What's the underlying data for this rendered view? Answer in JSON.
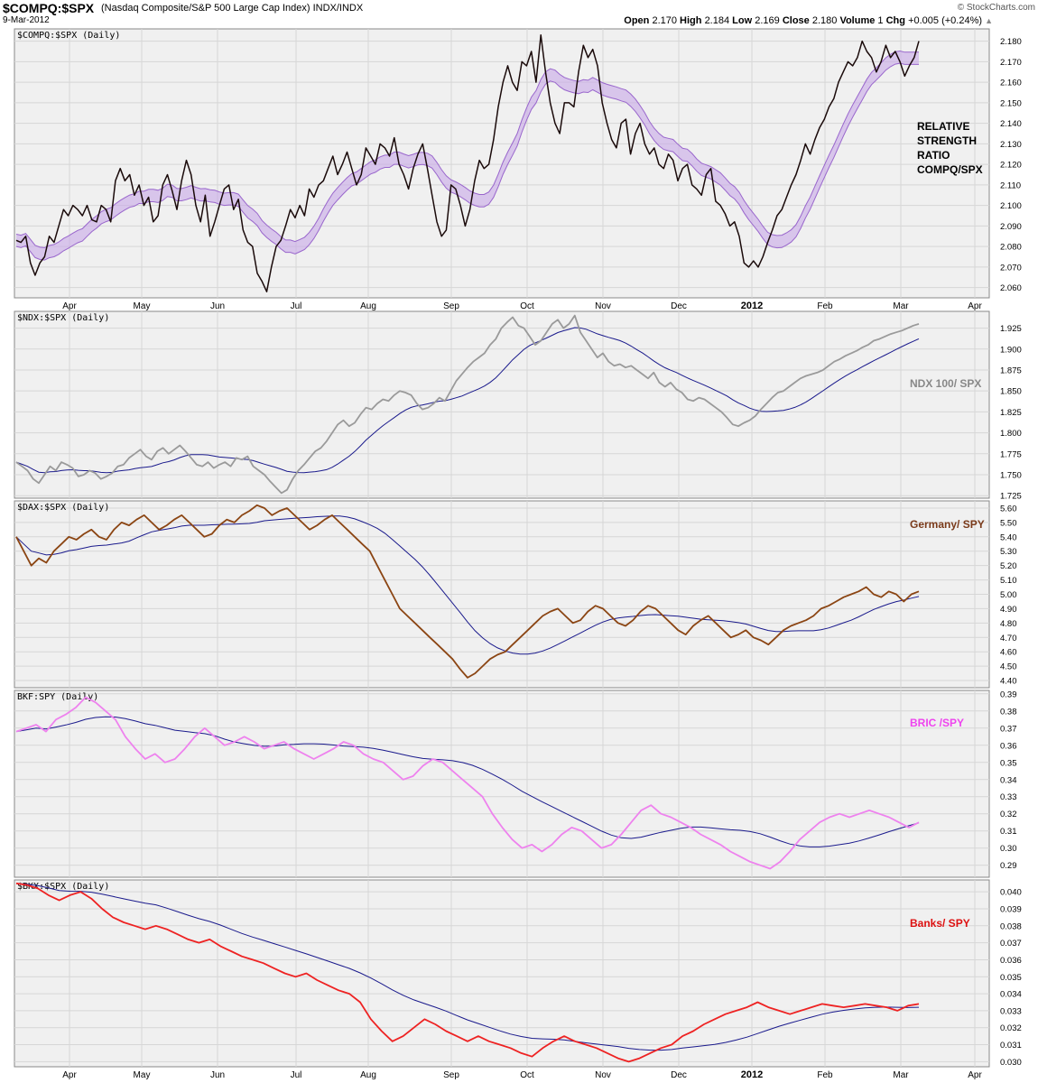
{
  "header": {
    "symbol": "$COMPQ:$SPX",
    "name": "(Nasdaq Composite/S&P 500 Large Cap Index)  INDX/INDX",
    "date": "9-Mar-2012",
    "brand": "© StockCharts.com",
    "quote": {
      "open_label": "Open",
      "open": "2.170",
      "high_label": "High",
      "high": "2.184",
      "low_label": "Low",
      "low": "2.169",
      "close_label": "Close",
      "close": "2.180",
      "volume_label": "Volume",
      "volume": "1",
      "chg_label": "Chg",
      "chg": "+0.005 (+0.24%)",
      "arrow": "▲"
    }
  },
  "colors": {
    "panel_bg": "#f0f0f0",
    "grid": "#d6d6d6",
    "ma": "#1a1a8c",
    "compq": "#1a0a0a",
    "band": "#9966cc"
  },
  "chart_data": [
    {
      "type": "line",
      "title": "$COMPQ:$SPX (Daily)",
      "annotation": [
        "RELATIVE",
        "STRENGTH",
        "RATIO",
        "COMPQ/SPX"
      ],
      "annotation_color": "#000000",
      "ylim": [
        2.055,
        2.186
      ],
      "yticks": [
        "2.060",
        "2.070",
        "2.080",
        "2.090",
        "2.100",
        "2.110",
        "2.120",
        "2.130",
        "2.140",
        "2.150",
        "2.160",
        "2.170",
        "2.180"
      ],
      "color": "#1a0a0a",
      "ma_color": "#9966cc",
      "ma_band": true,
      "months": [
        "Apr",
        "May",
        "Jun",
        "Jul",
        "Aug",
        "Sep",
        "Oct",
        "Nov",
        "Dec",
        "2012",
        "Feb",
        "Mar",
        "Apr"
      ],
      "series": [
        2.083,
        2.082,
        2.085,
        2.072,
        2.066,
        2.072,
        2.075,
        2.085,
        2.082,
        2.09,
        2.098,
        2.095,
        2.1,
        2.098,
        2.095,
        2.1,
        2.093,
        2.092,
        2.1,
        2.098,
        2.092,
        2.112,
        2.118,
        2.112,
        2.115,
        2.105,
        2.11,
        2.1,
        2.104,
        2.092,
        2.095,
        2.11,
        2.115,
        2.107,
        2.098,
        2.112,
        2.122,
        2.115,
        2.1,
        2.092,
        2.105,
        2.085,
        2.092,
        2.1,
        2.108,
        2.11,
        2.098,
        2.103,
        2.088,
        2.082,
        2.08,
        2.067,
        2.063,
        2.058,
        2.07,
        2.08,
        2.083,
        2.09,
        2.098,
        2.094,
        2.1,
        2.095,
        2.108,
        2.104,
        2.11,
        2.112,
        2.118,
        2.124,
        2.115,
        2.12,
        2.126,
        2.118,
        2.11,
        2.115,
        2.128,
        2.124,
        2.12,
        2.13,
        2.128,
        2.124,
        2.133,
        2.12,
        2.115,
        2.108,
        2.118,
        2.125,
        2.13,
        2.118,
        2.105,
        2.092,
        2.085,
        2.088,
        2.11,
        2.108,
        2.1,
        2.09,
        2.098,
        2.112,
        2.122,
        2.118,
        2.12,
        2.132,
        2.148,
        2.16,
        2.168,
        2.16,
        2.156,
        2.17,
        2.168,
        2.175,
        2.16,
        2.183,
        2.165,
        2.15,
        2.14,
        2.135,
        2.15,
        2.15,
        2.148,
        2.165,
        2.178,
        2.172,
        2.176,
        2.168,
        2.15,
        2.14,
        2.132,
        2.128,
        2.14,
        2.142,
        2.125,
        2.135,
        2.14,
        2.13,
        2.125,
        2.128,
        2.12,
        2.118,
        2.125,
        2.122,
        2.112,
        2.118,
        2.12,
        2.11,
        2.108,
        2.105,
        2.115,
        2.118,
        2.102,
        2.1,
        2.096,
        2.09,
        2.092,
        2.085,
        2.072,
        2.07,
        2.073,
        2.07,
        2.075,
        2.082,
        2.088,
        2.095,
        2.098,
        2.104,
        2.11,
        2.115,
        2.122,
        2.13,
        2.125,
        2.132,
        2.138,
        2.142,
        2.148,
        2.152,
        2.16,
        2.165,
        2.17,
        2.168,
        2.172,
        2.18,
        2.175,
        2.172,
        2.165,
        2.17,
        2.178,
        2.172,
        2.175,
        2.17,
        2.163,
        2.168,
        2.172,
        2.18
      ]
    },
    {
      "type": "line",
      "title": "$NDX:$SPX (Daily)",
      "annotation": [
        "NDX 100/ SPX"
      ],
      "annotation_color": "#888888",
      "ylim": [
        1.722,
        1.945
      ],
      "yticks": [
        "1.725",
        "1.750",
        "1.775",
        "1.800",
        "1.825",
        "1.850",
        "1.875",
        "1.900",
        "1.925"
      ],
      "color": "#9a9a9a",
      "ma_color": "#1a1a8c",
      "months": [
        "Apr",
        "May",
        "Jun",
        "Jul",
        "Aug",
        "Sep",
        "Oct",
        "Nov",
        "Dec",
        "2012",
        "Feb",
        "Mar",
        "Apr"
      ],
      "series": [
        1.765,
        1.76,
        1.755,
        1.745,
        1.74,
        1.75,
        1.76,
        1.755,
        1.765,
        1.762,
        1.758,
        1.748,
        1.75,
        1.755,
        1.752,
        1.745,
        1.748,
        1.752,
        1.76,
        1.762,
        1.77,
        1.775,
        1.78,
        1.772,
        1.768,
        1.778,
        1.782,
        1.775,
        1.78,
        1.785,
        1.778,
        1.77,
        1.762,
        1.76,
        1.765,
        1.758,
        1.762,
        1.765,
        1.76,
        1.77,
        1.768,
        1.772,
        1.76,
        1.755,
        1.75,
        1.742,
        1.735,
        1.728,
        1.732,
        1.745,
        1.755,
        1.762,
        1.77,
        1.778,
        1.782,
        1.79,
        1.8,
        1.81,
        1.815,
        1.808,
        1.812,
        1.822,
        1.83,
        1.828,
        1.835,
        1.84,
        1.838,
        1.845,
        1.85,
        1.848,
        1.845,
        1.835,
        1.828,
        1.83,
        1.835,
        1.842,
        1.838,
        1.85,
        1.862,
        1.87,
        1.878,
        1.885,
        1.89,
        1.895,
        1.905,
        1.912,
        1.925,
        1.932,
        1.938,
        1.928,
        1.925,
        1.915,
        1.905,
        1.91,
        1.92,
        1.93,
        1.935,
        1.925,
        1.93,
        1.94,
        1.92,
        1.91,
        1.9,
        1.89,
        1.895,
        1.885,
        1.88,
        1.882,
        1.878,
        1.88,
        1.875,
        1.87,
        1.865,
        1.872,
        1.86,
        1.855,
        1.86,
        1.852,
        1.848,
        1.84,
        1.838,
        1.842,
        1.84,
        1.835,
        1.83,
        1.825,
        1.818,
        1.81,
        1.808,
        1.812,
        1.815,
        1.82,
        1.828,
        1.835,
        1.842,
        1.848,
        1.85,
        1.855,
        1.86,
        1.865,
        1.868,
        1.87,
        1.872,
        1.875,
        1.88,
        1.885,
        1.888,
        1.892,
        1.895,
        1.898,
        1.902,
        1.905,
        1.91,
        1.912,
        1.915,
        1.918,
        1.92,
        1.922,
        1.925,
        1.928,
        1.93
      ]
    },
    {
      "type": "line",
      "title": "$DAX:$SPX (Daily)",
      "annotation": [
        "Germany/ SPY"
      ],
      "annotation_color": "#7a3a1a",
      "ylim": [
        4.35,
        5.65
      ],
      "yticks": [
        "4.40",
        "4.50",
        "4.60",
        "4.70",
        "4.80",
        "4.90",
        "5.00",
        "5.10",
        "5.20",
        "5.30",
        "5.40",
        "5.50",
        "5.60"
      ],
      "color": "#8b4513",
      "ma_color": "#1a1a8c",
      "months": [
        "Apr",
        "May",
        "Jun",
        "Jul",
        "Aug",
        "Sep",
        "Oct",
        "Nov",
        "Dec",
        "2012",
        "Feb",
        "Mar",
        "Apr"
      ],
      "series": [
        5.4,
        5.3,
        5.2,
        5.25,
        5.22,
        5.3,
        5.35,
        5.4,
        5.38,
        5.42,
        5.45,
        5.4,
        5.38,
        5.45,
        5.5,
        5.48,
        5.52,
        5.55,
        5.5,
        5.45,
        5.48,
        5.52,
        5.55,
        5.5,
        5.45,
        5.4,
        5.42,
        5.48,
        5.52,
        5.5,
        5.55,
        5.58,
        5.62,
        5.6,
        5.55,
        5.58,
        5.6,
        5.55,
        5.5,
        5.45,
        5.48,
        5.52,
        5.55,
        5.5,
        5.45,
        5.4,
        5.35,
        5.3,
        5.2,
        5.1,
        5.0,
        4.9,
        4.85,
        4.8,
        4.75,
        4.7,
        4.65,
        4.6,
        4.55,
        4.48,
        4.42,
        4.45,
        4.5,
        4.55,
        4.58,
        4.6,
        4.65,
        4.7,
        4.75,
        4.8,
        4.85,
        4.88,
        4.9,
        4.85,
        4.8,
        4.82,
        4.88,
        4.92,
        4.9,
        4.85,
        4.8,
        4.78,
        4.82,
        4.88,
        4.92,
        4.9,
        4.85,
        4.8,
        4.75,
        4.72,
        4.78,
        4.82,
        4.85,
        4.8,
        4.75,
        4.7,
        4.72,
        4.75,
        4.7,
        4.68,
        4.65,
        4.7,
        4.75,
        4.78,
        4.8,
        4.82,
        4.85,
        4.9,
        4.92,
        4.95,
        4.98,
        5.0,
        5.02,
        5.05,
        5.0,
        4.98,
        5.02,
        5.0,
        4.95,
        5.0,
        5.02
      ]
    },
    {
      "type": "line",
      "title": "BKF:SPY (Daily)",
      "annotation": [
        "BRIC /SPY"
      ],
      "annotation_color": "#ee44ee",
      "ylim": [
        0.283,
        0.392
      ],
      "yticks": [
        "0.29",
        "0.30",
        "0.31",
        "0.32",
        "0.33",
        "0.34",
        "0.35",
        "0.36",
        "0.37",
        "0.38",
        "0.39"
      ],
      "color": "#ee82ee",
      "ma_color": "#1a1a8c",
      "months": [
        "Apr",
        "May",
        "Jun",
        "Jul",
        "Aug",
        "Sep",
        "Oct",
        "Nov",
        "Dec",
        "2012",
        "Feb",
        "Mar",
        "Apr"
      ],
      "series": [
        0.368,
        0.37,
        0.372,
        0.368,
        0.375,
        0.378,
        0.382,
        0.388,
        0.385,
        0.38,
        0.375,
        0.365,
        0.358,
        0.352,
        0.355,
        0.35,
        0.352,
        0.358,
        0.365,
        0.37,
        0.365,
        0.36,
        0.362,
        0.365,
        0.362,
        0.358,
        0.36,
        0.362,
        0.358,
        0.355,
        0.352,
        0.355,
        0.358,
        0.362,
        0.36,
        0.355,
        0.352,
        0.35,
        0.345,
        0.34,
        0.342,
        0.348,
        0.352,
        0.35,
        0.345,
        0.34,
        0.335,
        0.33,
        0.32,
        0.312,
        0.305,
        0.3,
        0.302,
        0.298,
        0.302,
        0.308,
        0.312,
        0.31,
        0.305,
        0.3,
        0.302,
        0.308,
        0.315,
        0.322,
        0.325,
        0.32,
        0.318,
        0.315,
        0.312,
        0.308,
        0.305,
        0.302,
        0.298,
        0.295,
        0.292,
        0.29,
        0.288,
        0.292,
        0.298,
        0.305,
        0.31,
        0.315,
        0.318,
        0.32,
        0.318,
        0.32,
        0.322,
        0.32,
        0.318,
        0.315,
        0.312,
        0.315
      ]
    },
    {
      "type": "line",
      "title": "$BKX:$SPX (Daily)",
      "annotation": [
        "Banks/ SPY"
      ],
      "annotation_color": "#dd1111",
      "ylim": [
        0.0297,
        0.0407
      ],
      "yticks": [
        "0.030",
        "0.031",
        "0.032",
        "0.033",
        "0.034",
        "0.035",
        "0.036",
        "0.037",
        "0.038",
        "0.039",
        "0.040"
      ],
      "color": "#ee2222",
      "ma_color": "#1a1a8c",
      "months": [
        "Apr",
        "May",
        "Jun",
        "Jul",
        "Aug",
        "Sep",
        "Oct",
        "Nov",
        "Dec",
        "2012",
        "Feb",
        "Mar",
        "Apr"
      ],
      "series": [
        0.0405,
        0.0404,
        0.0402,
        0.0398,
        0.0395,
        0.0398,
        0.04,
        0.0396,
        0.039,
        0.0385,
        0.0382,
        0.038,
        0.0378,
        0.038,
        0.0378,
        0.0375,
        0.0372,
        0.037,
        0.0372,
        0.0368,
        0.0365,
        0.0362,
        0.036,
        0.0358,
        0.0355,
        0.0352,
        0.035,
        0.0352,
        0.0348,
        0.0345,
        0.0342,
        0.034,
        0.0335,
        0.0325,
        0.0318,
        0.0312,
        0.0315,
        0.032,
        0.0325,
        0.0322,
        0.0318,
        0.0315,
        0.0312,
        0.0315,
        0.0312,
        0.031,
        0.0308,
        0.0305,
        0.0303,
        0.0308,
        0.0312,
        0.0315,
        0.0312,
        0.031,
        0.0308,
        0.0305,
        0.0302,
        0.03,
        0.0302,
        0.0305,
        0.0308,
        0.031,
        0.0315,
        0.0318,
        0.0322,
        0.0325,
        0.0328,
        0.033,
        0.0332,
        0.0335,
        0.0332,
        0.033,
        0.0328,
        0.033,
        0.0332,
        0.0334,
        0.0333,
        0.0332,
        0.0333,
        0.0334,
        0.0333,
        0.0332,
        0.033,
        0.0333,
        0.0334
      ]
    }
  ]
}
